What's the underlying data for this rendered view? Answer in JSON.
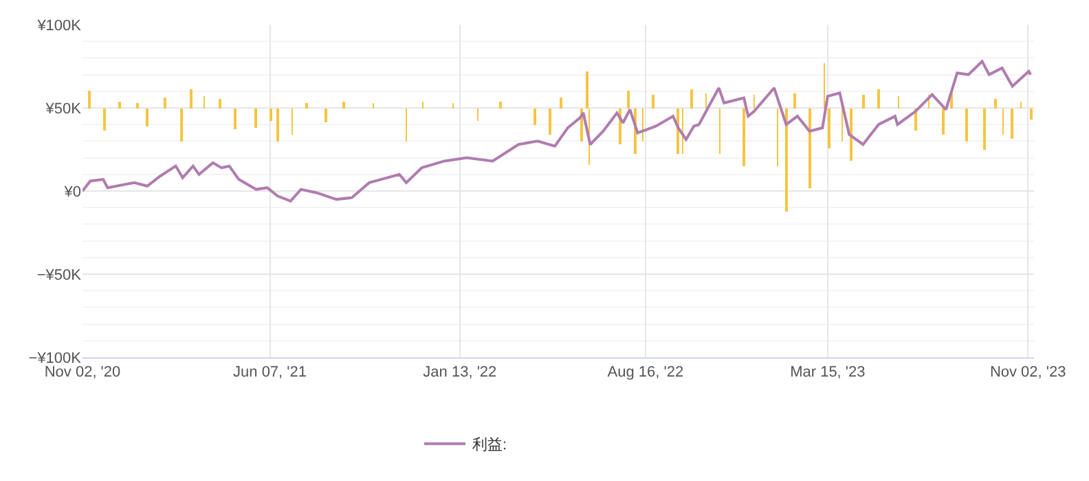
{
  "chart_data": {
    "type": "line",
    "xlim": [
      "2020-11-02",
      "2023-11-09"
    ],
    "xticks": [
      {
        "value": "2020-11-02",
        "label": "Nov 02, '20"
      },
      {
        "value": "2021-06-07",
        "label": "Jun 07, '21"
      },
      {
        "value": "2022-01-13",
        "label": "Jan 13, '22"
      },
      {
        "value": "2022-08-16",
        "label": "Aug 16, '22"
      },
      {
        "value": "2023-03-15",
        "label": "Mar 15, '23"
      },
      {
        "value": "2023-11-02",
        "label": "Nov 02, '23"
      }
    ],
    "ylim": [
      -100000,
      100000
    ],
    "yticks": [
      {
        "value": -100000,
        "label": "−¥100K"
      },
      {
        "value": -50000,
        "label": "−¥50K"
      },
      {
        "value": 0,
        "label": "¥0"
      },
      {
        "value": 50000,
        "label": "¥50K"
      },
      {
        "value": 100000,
        "label": "¥100K"
      }
    ],
    "grid": true,
    "legend": "bottom",
    "series": [
      {
        "type": "bar",
        "color": "#f5c542",
        "base": [
          50000,
          50000,
          50000,
          50000,
          50000,
          50000,
          50000,
          50000,
          50000,
          50000,
          50000,
          50000,
          50000,
          50000,
          50000,
          50000,
          50000,
          50000,
          50000,
          50000,
          50000,
          50000,
          50000,
          50000,
          50000,
          50000,
          50000,
          50000,
          50000,
          50000,
          50000,
          50000,
          50000,
          50000,
          50000,
          50000,
          50000,
          50000,
          50000,
          50000,
          50000,
          50000,
          50000,
          50000,
          50000,
          50000,
          50000,
          50000,
          50000,
          50000,
          50000,
          50000,
          50000,
          50000,
          50000,
          50000,
          50000,
          50000,
          50000,
          50000,
          50000,
          50000,
          50000,
          50000
        ],
        "x": [
          "2020-11-10",
          "2020-11-28",
          "2020-12-15",
          "2021-01-05",
          "2021-01-16",
          "2021-02-05",
          "2021-02-25",
          "2021-03-08",
          "2021-03-23",
          "2021-04-10",
          "2021-04-28",
          "2021-05-22",
          "2021-06-08",
          "2021-06-16",
          "2021-07-03",
          "2021-07-20",
          "2021-08-11",
          "2021-09-01",
          "2021-10-05",
          "2021-11-12",
          "2021-12-01",
          "2022-01-05",
          "2022-02-03",
          "2022-03-01",
          "2022-04-10",
          "2022-04-28",
          "2022-05-10",
          "2022-06-03",
          "2022-06-09",
          "2022-06-12",
          "2022-07-18",
          "2022-07-27",
          "2022-08-04",
          "2022-08-13",
          "2022-08-25",
          "2022-09-23",
          "2022-09-28",
          "2022-10-08",
          "2022-10-25",
          "2022-11-10",
          "2022-12-08",
          "2022-12-20",
          "2023-01-16",
          "2023-01-26",
          "2023-02-05",
          "2023-02-22",
          "2023-03-11",
          "2023-03-17",
          "2023-04-01",
          "2023-04-11",
          "2023-04-25",
          "2023-05-13",
          "2023-06-05",
          "2023-06-25",
          "2023-07-10",
          "2023-07-27",
          "2023-08-05",
          "2023-08-23",
          "2023-09-13",
          "2023-09-25",
          "2023-10-04",
          "2023-10-15",
          "2023-10-25",
          "2023-11-06"
        ],
        "values": [
          10000,
          -14000,
          4000,
          3000,
          -11000,
          6000,
          -20000,
          11000,
          7000,
          5000,
          -13000,
          -12000,
          -8000,
          -20000,
          -16000,
          3000,
          -9000,
          4000,
          3000,
          -20000,
          4000,
          3000,
          -8000,
          4000,
          -10000,
          -16000,
          6000,
          -20000,
          22000,
          -34000,
          -22000,
          10000,
          -28000,
          -20000,
          8000,
          -28000,
          -28000,
          11000,
          9000,
          -28000,
          -35000,
          8000,
          -35000,
          -62000,
          9000,
          -48000,
          27000,
          -24000,
          -20000,
          -32000,
          8000,
          11000,
          7000,
          -14000,
          8000,
          -16000,
          9000,
          -20000,
          -25000,
          5000,
          -16000,
          -19000,
          4000,
          -7000
        ]
      },
      {
        "name": "利益:",
        "color": "#b07cae",
        "x": [
          "2020-11-02",
          "2020-11-11",
          "2020-11-26",
          "2020-12-01",
          "2021-01-01",
          "2021-01-16",
          "2021-01-31",
          "2021-02-18",
          "2021-02-26",
          "2021-03-10",
          "2021-03-17",
          "2021-04-02",
          "2021-04-12",
          "2021-04-21",
          "2021-05-02",
          "2021-05-22",
          "2021-06-04",
          "2021-06-16",
          "2021-07-01",
          "2021-07-13",
          "2021-07-31",
          "2021-08-23",
          "2021-09-10",
          "2021-09-30",
          "2021-11-04",
          "2021-11-12",
          "2021-11-30",
          "2021-12-26",
          "2022-01-21",
          "2022-02-20",
          "2022-03-22",
          "2022-04-13",
          "2022-05-03",
          "2022-05-18",
          "2022-06-01",
          "2022-06-05",
          "2022-06-13",
          "2022-06-28",
          "2022-07-14",
          "2022-07-21",
          "2022-07-29",
          "2022-08-07",
          "2022-08-28",
          "2022-09-17",
          "2022-09-23",
          "2022-10-02",
          "2022-10-11",
          "2022-10-17",
          "2022-11-09",
          "2022-11-15",
          "2022-12-08",
          "2022-12-13",
          "2022-12-20",
          "2023-01-12",
          "2023-01-26",
          "2023-02-08",
          "2023-02-22",
          "2023-03-09",
          "2023-03-15",
          "2023-03-29",
          "2023-04-09",
          "2023-04-25",
          "2023-05-13",
          "2023-06-01",
          "2023-06-04",
          "2023-06-25",
          "2023-07-14",
          "2023-07-30",
          "2023-08-12",
          "2023-08-25",
          "2023-09-10",
          "2023-09-18",
          "2023-10-03",
          "2023-10-15",
          "2023-11-03",
          "2023-11-05"
        ],
        "values": [
          0,
          6000,
          7000,
          2000,
          5000,
          3000,
          9000,
          15000,
          8000,
          15000,
          10000,
          17000,
          14000,
          15000,
          7000,
          1000,
          2000,
          -3000,
          -6000,
          1000,
          -1000,
          -5000,
          -4000,
          5000,
          10000,
          5000,
          14000,
          18000,
          20000,
          18000,
          28000,
          30000,
          27000,
          38000,
          44000,
          47000,
          28000,
          36000,
          47000,
          41000,
          49000,
          35000,
          39000,
          45000,
          38000,
          31000,
          39000,
          40000,
          62000,
          53000,
          56000,
          45000,
          48000,
          62000,
          40000,
          45000,
          36000,
          38000,
          57000,
          59000,
          34000,
          28000,
          40000,
          45000,
          40000,
          48000,
          58000,
          49000,
          71000,
          70000,
          78000,
          70000,
          74000,
          63000,
          72000,
          70000
        ]
      }
    ]
  }
}
